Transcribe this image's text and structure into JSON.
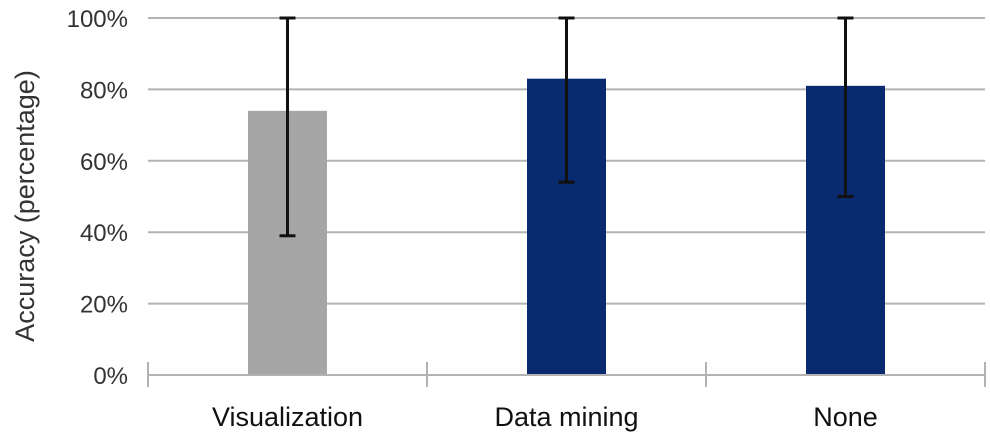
{
  "chart_data": {
    "type": "bar",
    "title": "",
    "xlabel": "",
    "ylabel": "Accuracy (percentage)",
    "categories": [
      "Visualization",
      "Data mining",
      "None"
    ],
    "values": [
      74,
      83,
      81
    ],
    "error_low": [
      39,
      54,
      50
    ],
    "error_high": [
      100,
      100,
      100
    ],
    "bar_colors": [
      "#a6a6a6",
      "#0a2a70",
      "#0a2a70"
    ],
    "error_bar_color": "#111111",
    "gridline_color": "#b3b3b3",
    "ylim": [
      0,
      100
    ],
    "yticks": [
      0,
      20,
      40,
      60,
      80,
      100
    ],
    "ytick_labels": [
      "0%",
      "20%",
      "40%",
      "60%",
      "80%",
      "100%"
    ],
    "grid": true,
    "legend": "none"
  }
}
